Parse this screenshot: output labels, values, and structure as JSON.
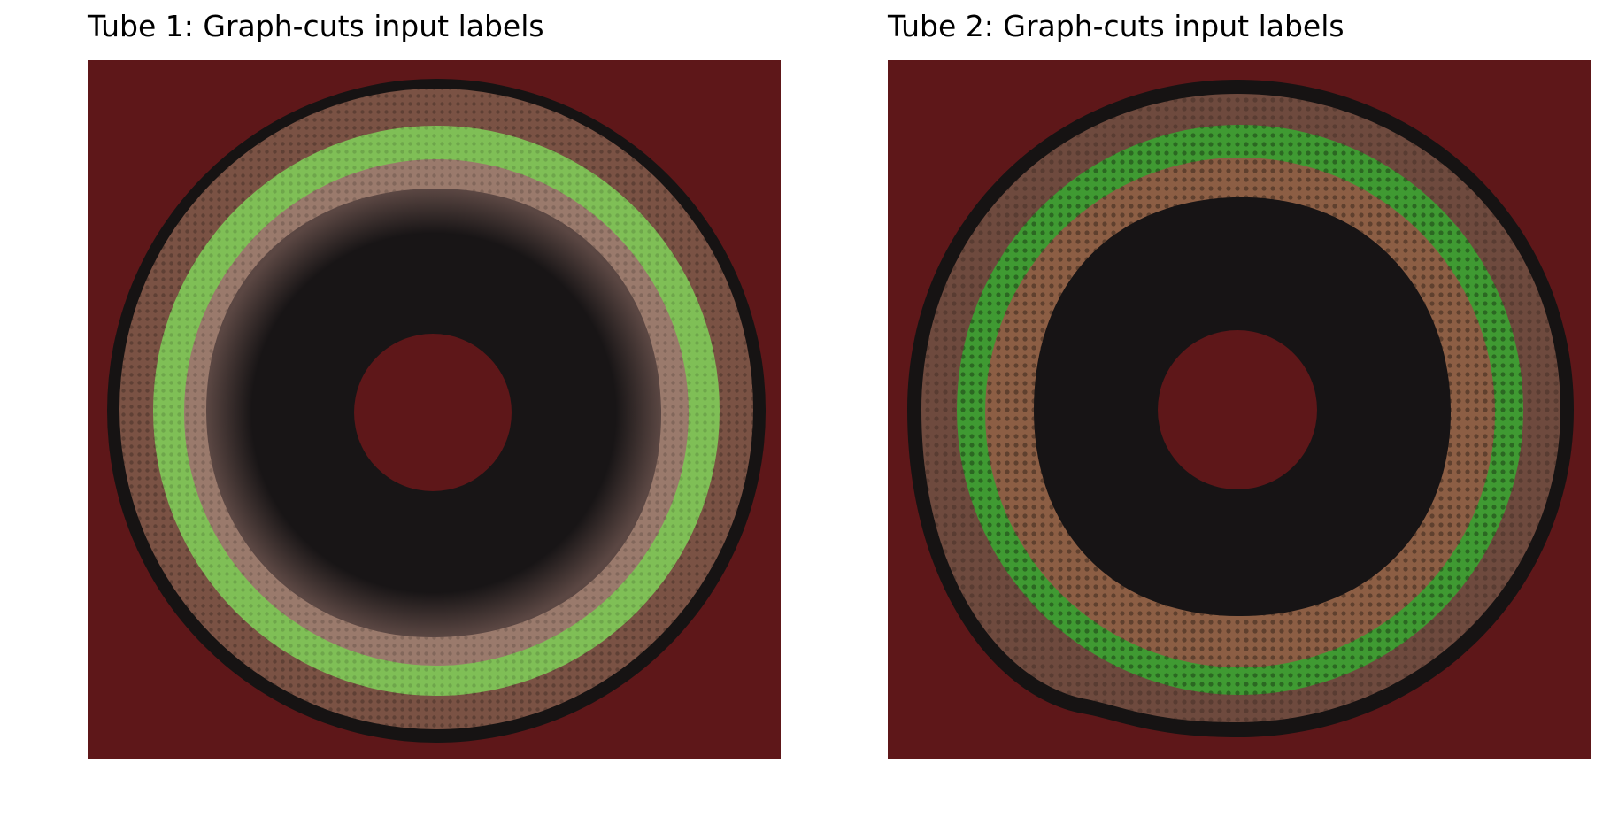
{
  "panels": [
    {
      "title": "Tube 1: Graph-cuts input labels",
      "label_colors": {
        "background": "#5e1719",
        "outer_bark": "#7a5244",
        "green_band": "#7fbf56",
        "inner_wood": "#9a7a6c",
        "hollow": "#181516",
        "pith": "#5e1719"
      }
    },
    {
      "title": "Tube 2: Graph-cuts input labels",
      "label_colors": {
        "background": "#5e1719",
        "outer_bark": "#6e4a3e",
        "green_band": "#3f9a32",
        "inner_wood": "#8c5e44",
        "hollow": "#171415",
        "pith": "#5e1719"
      }
    }
  ]
}
